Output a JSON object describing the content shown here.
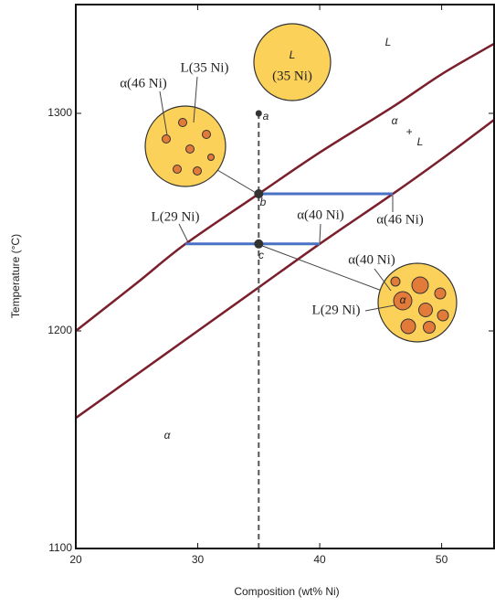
{
  "chart_data": {
    "type": "line",
    "xlabel": "Composition (wt% Ni)",
    "ylabel": "Temperature (°C)",
    "xlim": [
      20,
      54.3
    ],
    "ylim": [
      1100,
      1350
    ],
    "xticks": [
      20,
      30,
      40,
      50
    ],
    "yticks": [
      1100,
      1200,
      1300
    ],
    "series": [
      {
        "color": "#7a1f2b",
        "x": [
          20,
          25,
          29,
          35,
          40,
          46,
          50,
          54.3
        ],
        "values": [
          1200,
          1222,
          1240,
          1263,
          1282,
          1303,
          1318,
          1332
        ],
        "smooth": true
      },
      {
        "color": "#7a1f2b",
        "x": [
          20,
          25,
          30,
          35,
          40,
          46,
          50,
          54.3
        ],
        "values": [
          1160,
          1180,
          1200,
          1220,
          1240,
          1263,
          1279,
          1297
        ],
        "smooth": true
      },
      {
        "color": "#4a72c4",
        "x": [
          35,
          46
        ],
        "values": [
          1263,
          1263
        ]
      },
      {
        "color": "#4a72c4",
        "x": [
          29,
          40
        ],
        "values": [
          1240,
          1240
        ]
      },
      {
        "color": "#555555",
        "x": [
          35,
          35
        ],
        "values": [
          1300,
          1100
        ],
        "dashed": true
      },
      {
        "color": "#333333",
        "x": [
          35,
          35,
          35
        ],
        "values": [
          1300,
          1263,
          1240
        ],
        "markers": true
      }
    ],
    "annotations": [
      "L",
      "α",
      "+",
      "L",
      "α",
      "L",
      "(35 Ni)",
      "a",
      "b",
      "c",
      "α(46 Ni)",
      "L(35 Ni)",
      "L(29 Ni)",
      "α(40 Ni)",
      "α(46 Ni)",
      "α(40 Ni)",
      "L(29 Ni)",
      "α"
    ]
  }
}
